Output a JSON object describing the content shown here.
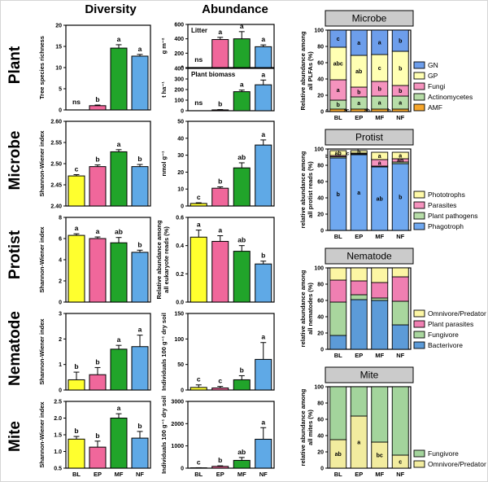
{
  "figure": {
    "col_headers": {
      "diversity": "Diversity",
      "abundance": "Abundance"
    },
    "row_labels": [
      "Plant",
      "Microbe",
      "Protist",
      "Nematode",
      "Mite"
    ],
    "treatments": [
      "BL",
      "EP",
      "MF",
      "NF"
    ]
  },
  "palette": {
    "bar_colors": [
      "#FFFF2E",
      "#F0679B",
      "#21A42A",
      "#5FA9E6"
    ],
    "panel_title_bg": "#CBCBCB"
  },
  "chart_data": [
    {
      "id": "plant-diversity",
      "type": "bar",
      "ylabel": [
        "Tree species richness"
      ],
      "ylim": [
        0,
        20
      ],
      "tick_vals": [
        0,
        5,
        10,
        15,
        20
      ],
      "tick_labels": [
        "0",
        "5",
        "10",
        "15",
        "20"
      ],
      "categories": [
        "BL",
        "EP",
        "MF",
        "NF"
      ],
      "values": [
        0,
        1.0,
        14.6,
        12.7
      ],
      "errors": [
        0,
        0.15,
        0.8,
        0.4
      ],
      "letters": [
        "ns",
        "b",
        "a",
        "a"
      ],
      "show_x": false
    },
    {
      "id": "plant-litter",
      "type": "bar",
      "inner_title": "Litter",
      "ylabel": [
        "g m⁻²"
      ],
      "ylim": [
        0,
        600
      ],
      "tick_vals": [
        0,
        200,
        400,
        600
      ],
      "tick_labels": [
        "0",
        "200",
        "400",
        "600"
      ],
      "categories": [
        "BL",
        "EP",
        "MF",
        "NF"
      ],
      "values": [
        0,
        390,
        400,
        290
      ],
      "errors": [
        0,
        30,
        100,
        25
      ],
      "letters": [
        "ns",
        "a",
        "a",
        "a"
      ],
      "show_x": false
    },
    {
      "id": "plant-biomass",
      "type": "bar",
      "inner_title": "Plant biomass",
      "ylabel": [
        "t ha⁻¹"
      ],
      "ylim": [
        0,
        400
      ],
      "tick_vals": [
        0,
        100,
        200,
        300,
        400
      ],
      "tick_labels": [
        "0",
        "100",
        "200",
        "300",
        "400"
      ],
      "categories": [
        "BL",
        "EP",
        "MF",
        "NF"
      ],
      "values": [
        0,
        8,
        180,
        245
      ],
      "errors": [
        0,
        3,
        15,
        45
      ],
      "letters": [
        "ns",
        "b",
        "a",
        "a"
      ],
      "show_x": false
    },
    {
      "id": "microbe-diversity",
      "type": "bar",
      "ylabel": [
        "Shannon-Wiener index"
      ],
      "ylim": [
        2.4,
        2.6
      ],
      "tick_vals": [
        2.4,
        2.45,
        2.5,
        2.55,
        2.6
      ],
      "tick_labels": [
        "2.40",
        "2.45",
        "2.50",
        "2.55",
        "2.60"
      ],
      "categories": [
        "BL",
        "EP",
        "MF",
        "NF"
      ],
      "values": [
        2.471,
        2.493,
        2.528,
        2.493
      ],
      "errors": [
        0.003,
        0.004,
        0.005,
        0.005
      ],
      "letters": [
        "c",
        "b",
        "a",
        "b"
      ],
      "show_x": false
    },
    {
      "id": "microbe-abundance",
      "type": "bar",
      "ylabel": [
        "nmol g⁻¹"
      ],
      "ylim": [
        0,
        50
      ],
      "tick_vals": [
        0,
        10,
        20,
        30,
        40,
        50
      ],
      "tick_labels": [
        "0",
        "10",
        "20",
        "30",
        "40",
        "50"
      ],
      "categories": [
        "BL",
        "EP",
        "MF",
        "NF"
      ],
      "values": [
        1.5,
        10.5,
        22.5,
        36
      ],
      "errors": [
        0.4,
        0.8,
        3,
        3
      ],
      "letters": [
        "c",
        "b",
        "ab",
        "a"
      ],
      "show_x": false
    },
    {
      "id": "protist-diversity",
      "type": "bar",
      "ylabel": [
        "Shannon-Wiener index"
      ],
      "ylim": [
        0,
        8
      ],
      "tick_vals": [
        0,
        2,
        4,
        6,
        8
      ],
      "tick_labels": [
        "0",
        "2",
        "4",
        "6",
        "8"
      ],
      "categories": [
        "BL",
        "EP",
        "MF",
        "NF"
      ],
      "values": [
        6.3,
        6.0,
        5.6,
        4.7
      ],
      "errors": [
        0.15,
        0.15,
        0.5,
        0.2
      ],
      "letters": [
        "a",
        "a",
        "ab",
        "b"
      ],
      "show_x": false
    },
    {
      "id": "protist-abundance",
      "type": "bar",
      "ylabel": [
        "Relative abundance among",
        "all eukaryote reads (%)"
      ],
      "ylim": [
        0,
        0.6
      ],
      "tick_vals": [
        0,
        0.2,
        0.4,
        0.6
      ],
      "tick_labels": [
        "0.0",
        "0.2",
        "0.4",
        "0.6"
      ],
      "categories": [
        "BL",
        "EP",
        "MF",
        "NF"
      ],
      "values": [
        0.46,
        0.43,
        0.36,
        0.27
      ],
      "errors": [
        0.05,
        0.04,
        0.04,
        0.02
      ],
      "letters": [
        "a",
        "a",
        "ab",
        "b"
      ],
      "show_x": false
    },
    {
      "id": "nematode-diversity",
      "type": "bar",
      "ylabel": [
        "Shannon-Wiener index"
      ],
      "ylim": [
        0,
        3
      ],
      "tick_vals": [
        0,
        1,
        2,
        3
      ],
      "tick_labels": [
        "0",
        "1",
        "2",
        "3"
      ],
      "categories": [
        "BL",
        "EP",
        "MF",
        "NF"
      ],
      "values": [
        0.4,
        0.6,
        1.6,
        1.7
      ],
      "errors": [
        0.3,
        0.28,
        0.15,
        0.45
      ],
      "letters": [
        "b",
        "b",
        "a",
        "a"
      ],
      "show_x": false
    },
    {
      "id": "nematode-abundance",
      "type": "bar",
      "ylabel": [
        "Individuals 100 g⁻¹ dry soil"
      ],
      "ylim": [
        0,
        150
      ],
      "tick_vals": [
        0,
        50,
        100,
        150
      ],
      "tick_labels": [
        "0",
        "50",
        "100",
        "150"
      ],
      "categories": [
        "BL",
        "EP",
        "MF",
        "NF"
      ],
      "values": [
        5,
        4,
        20,
        60
      ],
      "errors": [
        5,
        3,
        8,
        33
      ],
      "letters": [
        "c",
        "c",
        "b",
        "a"
      ],
      "show_x": false
    },
    {
      "id": "mite-diversity",
      "type": "bar",
      "ylabel": [
        "Shannon-Wiener index"
      ],
      "ylim": [
        0.5,
        2.5
      ],
      "tick_vals": [
        0.5,
        1.0,
        1.5,
        2.0,
        2.5
      ],
      "tick_labels": [
        "0.5",
        "1.0",
        "1.5",
        "2.0",
        "2.5"
      ],
      "categories": [
        "BL",
        "EP",
        "MF",
        "NF"
      ],
      "values": [
        1.37,
        1.13,
        2.0,
        1.4
      ],
      "errors": [
        0.08,
        0.18,
        0.13,
        0.2
      ],
      "letters": [
        "b",
        "b",
        "a",
        "b"
      ],
      "show_x": true
    },
    {
      "id": "mite-abundance",
      "type": "bar",
      "ylabel": [
        "Individuals 100 g⁻¹ dry soil"
      ],
      "ylim": [
        0,
        3000
      ],
      "tick_vals": [
        0,
        1000,
        2000,
        3000
      ],
      "tick_labels": [
        "0",
        "1000",
        "2000",
        "3000"
      ],
      "categories": [
        "BL",
        "EP",
        "MF",
        "NF"
      ],
      "values": [
        15,
        80,
        350,
        1300
      ],
      "errors": [
        5,
        25,
        130,
        520
      ],
      "letters": [
        "c",
        "b",
        "ab",
        "a"
      ],
      "show_x": true
    },
    {
      "id": "microbe-composition",
      "type": "bar",
      "stacked": true,
      "panel_title": "Microbe",
      "ylabel": [
        "Relative abundance among",
        "all PLFAs (%)"
      ],
      "ylim": [
        0,
        100
      ],
      "tick_vals": [
        0,
        20,
        40,
        60,
        80,
        100
      ],
      "tick_labels": [
        "0",
        "20",
        "40",
        "60",
        "80",
        "100"
      ],
      "categories": [
        "BL",
        "EP",
        "MF",
        "NF"
      ],
      "series": [
        {
          "name": "AMF",
          "color": "#F6A62C",
          "values": [
            3,
            3,
            3,
            3
          ],
          "letters": [
            "c",
            "ac",
            "ab",
            "b"
          ],
          "letters_pos": [
            "out",
            "out",
            "out",
            "out"
          ]
        },
        {
          "name": "Actinomycetes",
          "color": "#B7DDA8",
          "values": [
            11,
            15,
            16,
            16
          ],
          "letters": [
            "b",
            "a",
            "a",
            "a"
          ]
        },
        {
          "name": "Fungi",
          "color": "#F593BE",
          "values": [
            25,
            12,
            18,
            13
          ],
          "letters": [
            "a",
            "b",
            "b",
            "b"
          ]
        },
        {
          "name": "GP",
          "color": "#FFFFB3",
          "values": [
            40,
            39,
            33,
            42
          ],
          "letters": [
            "abc",
            "ab",
            "c",
            "b"
          ]
        },
        {
          "name": "GN",
          "color": "#6D9EEB",
          "values": [
            21,
            31,
            30,
            26
          ],
          "letters": [
            "c",
            "a",
            "a",
            "b"
          ]
        }
      ]
    },
    {
      "id": "protist-composition",
      "type": "bar",
      "stacked": true,
      "panel_title": "Protist",
      "ylabel": [
        "relative abundance among",
        "all protist reads (%)"
      ],
      "ylim": [
        0,
        100
      ],
      "tick_vals": [
        0,
        20,
        40,
        60,
        80,
        100
      ],
      "tick_labels": [
        "0",
        "20",
        "40",
        "60",
        "80",
        "100"
      ],
      "categories": [
        "BL",
        "EP",
        "MF",
        "NF"
      ],
      "series": [
        {
          "name": "Phagotroph",
          "color": "#6FA8F0",
          "values": [
            89,
            93,
            78,
            82
          ],
          "letters": [
            "b",
            "a",
            "ab",
            "b"
          ]
        },
        {
          "name": "Plant pathogens",
          "color": "#B7DDA8",
          "values": [
            1.5,
            1,
            1,
            2
          ]
        },
        {
          "name": "Parasites",
          "color": "#F593BE",
          "values": [
            1.5,
            1,
            8,
            4
          ],
          "letters": [
            "b",
            "c",
            "a",
            "ab"
          ],
          "letters_pos": [
            "out",
            "out",
            "in",
            "in"
          ]
        },
        {
          "name": "Phototrophs",
          "color": "#FFFAA8",
          "values": [
            6,
            3,
            9,
            8
          ],
          "letters": [
            "ab",
            "b",
            "a",
            "a"
          ]
        }
      ]
    },
    {
      "id": "nematode-composition",
      "type": "bar",
      "stacked": true,
      "panel_title": "Nematode",
      "ylabel": [
        "relative abundance among",
        "all nematodes (%)"
      ],
      "ylim": [
        0,
        100
      ],
      "tick_vals": [
        0,
        20,
        40,
        60,
        80,
        100
      ],
      "tick_labels": [
        "0",
        "20",
        "40",
        "60",
        "80",
        "100"
      ],
      "categories": [
        "BL",
        "EP",
        "MF",
        "NF"
      ],
      "series": [
        {
          "name": "Bacterivore",
          "color": "#5C9BD8",
          "values": [
            17,
            61,
            60,
            30
          ]
        },
        {
          "name": "Fungivore",
          "color": "#A9D69E",
          "values": [
            41,
            6,
            3,
            29
          ]
        },
        {
          "name": "Plant parasites",
          "color": "#F07FB2",
          "values": [
            27,
            17,
            19,
            30
          ]
        },
        {
          "name": "Omnivore/Predator",
          "color": "#FCF6A4",
          "values": [
            15,
            16,
            18,
            11
          ]
        }
      ]
    },
    {
      "id": "mite-composition",
      "type": "bar",
      "stacked": true,
      "panel_title": "Mite",
      "ylabel": [
        "relative abundance among",
        "all mites (%)"
      ],
      "ylim": [
        0,
        100
      ],
      "tick_vals": [
        0,
        20,
        40,
        60,
        80,
        100
      ],
      "tick_labels": [
        "0",
        "20",
        "40",
        "60",
        "80",
        "100"
      ],
      "categories": [
        "BL",
        "EP",
        "MF",
        "NF"
      ],
      "series": [
        {
          "name": "Omnivore/Predator",
          "color": "#F2EC9F",
          "values": [
            35,
            64,
            32,
            16
          ],
          "letters": [
            "ab",
            "a",
            "bc",
            "c"
          ]
        },
        {
          "name": "Fungivore",
          "color": "#A3D49C",
          "values": [
            65,
            36,
            68,
            84
          ]
        }
      ]
    }
  ]
}
